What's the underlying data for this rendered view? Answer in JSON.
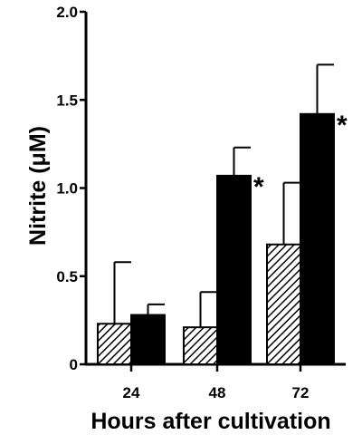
{
  "chart_data": {
    "type": "bar",
    "categories": [
      "24",
      "48",
      "72"
    ],
    "series": [
      {
        "values": [
          0.23,
          0.21,
          0.68
        ],
        "errors": [
          0.35,
          0.2,
          0.35
        ],
        "fill": "hatched"
      },
      {
        "values": [
          0.28,
          1.07,
          1.42
        ],
        "errors": [
          0.06,
          0.16,
          0.28
        ],
        "fill": "#000000"
      }
    ],
    "significance_marker": "*",
    "significant": [
      [
        false,
        false,
        false
      ],
      [
        false,
        true,
        true
      ]
    ],
    "xlabel": "Hours after  cultivation",
    "ylabel": "Nitrite (μM)",
    "ylim": [
      0,
      2.0
    ],
    "yticks": [
      0,
      0.5,
      1.0,
      1.5,
      2.0
    ],
    "ytick_labels": [
      "0",
      "0.5",
      "1.0",
      "1.5",
      "2.0"
    ],
    "grid": false,
    "legend": "none"
  }
}
